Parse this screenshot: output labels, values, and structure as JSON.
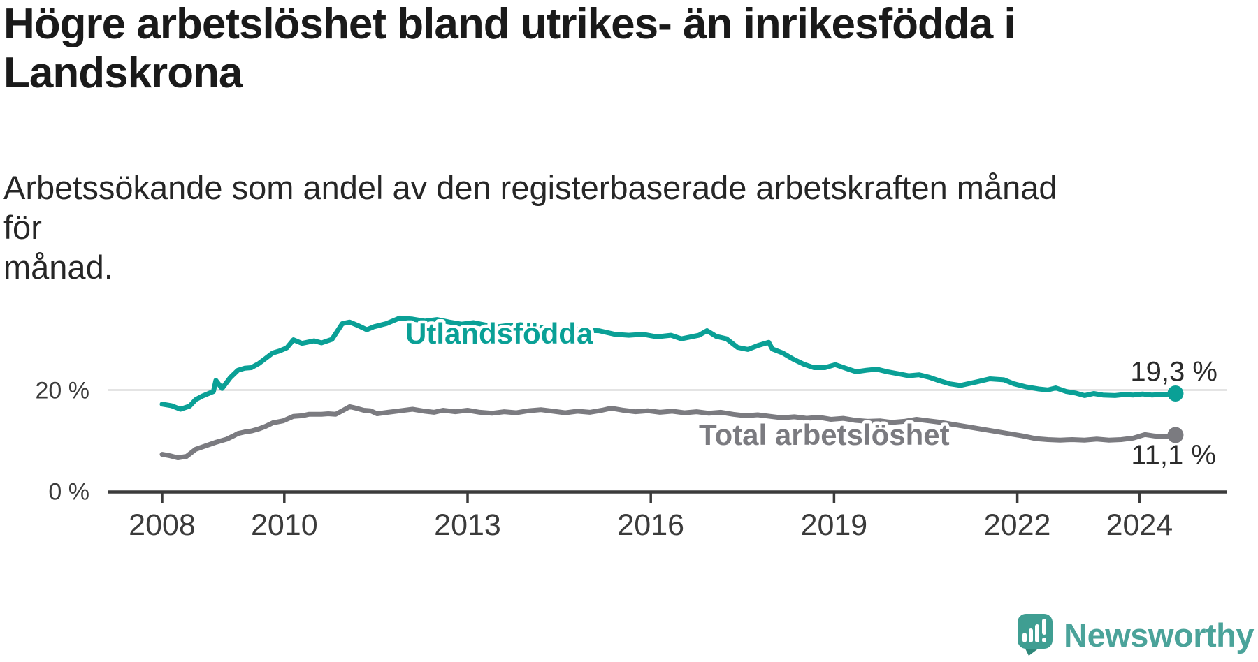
{
  "title": {
    "line1": "Högre arbetslöshet bland utrikes- än inrikesfödda i",
    "line2": "Landskrona",
    "full": "Högre arbetslöshet bland utrikes- än inrikesfödda i Landskrona"
  },
  "subtitle": {
    "line1": "Arbetssökande som andel av den registerbaserade arbetskraften månad för",
    "line2": "månad.",
    "full": "Arbetssökande som andel av den registerbaserade arbetskraften månad för månad."
  },
  "branding": {
    "logo_text": "Newsworthy",
    "logo_icon": "speech-bubble-bar-chart-exclamation",
    "brand_color": "#3f9e92",
    "text_color": "#4ba39a"
  },
  "chart_data": {
    "type": "line",
    "title": "Högre arbetslöshet bland utrikes- än inrikesfödda i Landskrona",
    "xlabel": "",
    "ylabel": "Arbetssökande som andel av den registerbaserade arbetskraften",
    "x_range": [
      2008.0,
      2024.59
    ],
    "ylim": [
      0,
      40
    ],
    "grid": "single horizontal gridline at 20 %",
    "x_ticks": [
      {
        "value": 2008,
        "label": "2008"
      },
      {
        "value": 2010,
        "label": "2010"
      },
      {
        "value": 2013,
        "label": "2013"
      },
      {
        "value": 2016,
        "label": "2016"
      },
      {
        "value": 2019,
        "label": "2019"
      },
      {
        "value": 2022,
        "label": "2022"
      },
      {
        "value": 2024,
        "label": "2024"
      }
    ],
    "y_ticks": [
      {
        "value": 0,
        "label": "0 %"
      },
      {
        "value": 20,
        "label": "20 %"
      }
    ],
    "axis_color": "#3b3b3b",
    "grid_color": "#dcdcdc",
    "value_label_color": "#2b2b2b",
    "series": [
      {
        "name": "Utlandsfödda",
        "color": "#0aa096",
        "end_label": "19,3 %",
        "end_value": 19.3,
        "points": [
          [
            2008.0,
            17.2
          ],
          [
            2008.15,
            16.9
          ],
          [
            2008.3,
            16.2
          ],
          [
            2008.45,
            16.8
          ],
          [
            2008.55,
            18.1
          ],
          [
            2008.66,
            18.8
          ],
          [
            2008.78,
            19.4
          ],
          [
            2008.84,
            19.7
          ],
          [
            2008.88,
            21.9
          ],
          [
            2008.98,
            20.3
          ],
          [
            2009.12,
            22.5
          ],
          [
            2009.24,
            23.9
          ],
          [
            2009.35,
            24.3
          ],
          [
            2009.46,
            24.4
          ],
          [
            2009.58,
            25.2
          ],
          [
            2009.69,
            26.2
          ],
          [
            2009.81,
            27.3
          ],
          [
            2009.92,
            27.7
          ],
          [
            2010.04,
            28.3
          ],
          [
            2010.15,
            29.9
          ],
          [
            2010.29,
            29.2
          ],
          [
            2010.49,
            29.7
          ],
          [
            2010.61,
            29.3
          ],
          [
            2010.78,
            30.0
          ],
          [
            2010.95,
            33.1
          ],
          [
            2011.07,
            33.4
          ],
          [
            2011.21,
            32.7
          ],
          [
            2011.35,
            31.9
          ],
          [
            2011.47,
            32.5
          ],
          [
            2011.67,
            33.1
          ],
          [
            2011.81,
            33.8
          ],
          [
            2011.89,
            34.2
          ],
          [
            2012.1,
            34.0
          ],
          [
            2012.3,
            33.6
          ],
          [
            2012.5,
            33.9
          ],
          [
            2012.7,
            33.4
          ],
          [
            2012.9,
            33.0
          ],
          [
            2013.1,
            33.3
          ],
          [
            2013.3,
            32.8
          ],
          [
            2013.5,
            32.5
          ],
          [
            2013.7,
            32.8
          ],
          [
            2013.9,
            32.3
          ],
          [
            2014.1,
            32.6
          ],
          [
            2014.3,
            32.1
          ],
          [
            2014.5,
            31.9
          ],
          [
            2014.7,
            32.2
          ],
          [
            2014.9,
            31.8
          ],
          [
            2015.15,
            31.7
          ],
          [
            2015.41,
            31.0
          ],
          [
            2015.64,
            30.8
          ],
          [
            2015.87,
            31.0
          ],
          [
            2016.1,
            30.5
          ],
          [
            2016.33,
            30.8
          ],
          [
            2016.5,
            30.1
          ],
          [
            2016.79,
            30.8
          ],
          [
            2016.92,
            31.7
          ],
          [
            2017.07,
            30.6
          ],
          [
            2017.24,
            30.1
          ],
          [
            2017.42,
            28.4
          ],
          [
            2017.59,
            28.0
          ],
          [
            2017.76,
            28.8
          ],
          [
            2017.93,
            29.4
          ],
          [
            2017.99,
            28.1
          ],
          [
            2018.16,
            27.3
          ],
          [
            2018.33,
            26.1
          ],
          [
            2018.5,
            25.1
          ],
          [
            2018.67,
            24.4
          ],
          [
            2018.85,
            24.4
          ],
          [
            2019.02,
            25.0
          ],
          [
            2019.19,
            24.3
          ],
          [
            2019.36,
            23.6
          ],
          [
            2019.53,
            23.9
          ],
          [
            2019.7,
            24.1
          ],
          [
            2019.87,
            23.6
          ],
          [
            2020.05,
            23.2
          ],
          [
            2020.22,
            22.8
          ],
          [
            2020.39,
            23.0
          ],
          [
            2020.56,
            22.5
          ],
          [
            2020.73,
            21.8
          ],
          [
            2020.9,
            21.2
          ],
          [
            2021.07,
            20.9
          ],
          [
            2021.3,
            21.5
          ],
          [
            2021.55,
            22.2
          ],
          [
            2021.78,
            22.0
          ],
          [
            2021.95,
            21.2
          ],
          [
            2022.15,
            20.6
          ],
          [
            2022.35,
            20.2
          ],
          [
            2022.5,
            20.0
          ],
          [
            2022.63,
            20.4
          ],
          [
            2022.8,
            19.7
          ],
          [
            2022.95,
            19.4
          ],
          [
            2023.1,
            18.9
          ],
          [
            2023.25,
            19.3
          ],
          [
            2023.4,
            19.0
          ],
          [
            2023.6,
            18.9
          ],
          [
            2023.75,
            19.1
          ],
          [
            2023.9,
            19.0
          ],
          [
            2024.05,
            19.2
          ],
          [
            2024.2,
            19.0
          ],
          [
            2024.35,
            19.1
          ],
          [
            2024.5,
            19.2
          ],
          [
            2024.59,
            19.3
          ]
        ]
      },
      {
        "name": "Total arbetslöshet",
        "color": "#7b7b80",
        "end_label": "11,1 %",
        "end_value": 11.1,
        "points": [
          [
            2008.0,
            7.3
          ],
          [
            2008.13,
            7.0
          ],
          [
            2008.26,
            6.6
          ],
          [
            2008.4,
            6.9
          ],
          [
            2008.55,
            8.3
          ],
          [
            2008.72,
            9.0
          ],
          [
            2008.89,
            9.7
          ],
          [
            2009.06,
            10.3
          ],
          [
            2009.18,
            11.0
          ],
          [
            2009.24,
            11.4
          ],
          [
            2009.35,
            11.7
          ],
          [
            2009.46,
            11.9
          ],
          [
            2009.58,
            12.3
          ],
          [
            2009.69,
            12.8
          ],
          [
            2009.81,
            13.5
          ],
          [
            2009.98,
            13.9
          ],
          [
            2010.15,
            14.8
          ],
          [
            2010.29,
            14.9
          ],
          [
            2010.4,
            15.2
          ],
          [
            2010.61,
            15.2
          ],
          [
            2010.72,
            15.3
          ],
          [
            2010.84,
            15.2
          ],
          [
            2010.95,
            15.9
          ],
          [
            2011.07,
            16.7
          ],
          [
            2011.18,
            16.4
          ],
          [
            2011.3,
            16.0
          ],
          [
            2011.41,
            15.9
          ],
          [
            2011.52,
            15.3
          ],
          [
            2011.7,
            15.6
          ],
          [
            2011.9,
            15.9
          ],
          [
            2012.1,
            16.2
          ],
          [
            2012.3,
            15.8
          ],
          [
            2012.45,
            15.6
          ],
          [
            2012.6,
            16.0
          ],
          [
            2012.8,
            15.7
          ],
          [
            2013.0,
            16.0
          ],
          [
            2013.2,
            15.6
          ],
          [
            2013.4,
            15.4
          ],
          [
            2013.6,
            15.7
          ],
          [
            2013.8,
            15.5
          ],
          [
            2014.0,
            15.9
          ],
          [
            2014.2,
            16.1
          ],
          [
            2014.4,
            15.8
          ],
          [
            2014.6,
            15.5
          ],
          [
            2014.8,
            15.8
          ],
          [
            2015.0,
            15.6
          ],
          [
            2015.2,
            16.0
          ],
          [
            2015.35,
            16.4
          ],
          [
            2015.55,
            16.0
          ],
          [
            2015.75,
            15.7
          ],
          [
            2015.95,
            15.9
          ],
          [
            2016.15,
            15.6
          ],
          [
            2016.35,
            15.8
          ],
          [
            2016.55,
            15.5
          ],
          [
            2016.75,
            15.7
          ],
          [
            2016.95,
            15.4
          ],
          [
            2017.15,
            15.6
          ],
          [
            2017.35,
            15.2
          ],
          [
            2017.55,
            14.9
          ],
          [
            2017.75,
            15.1
          ],
          [
            2017.95,
            14.8
          ],
          [
            2018.15,
            14.5
          ],
          [
            2018.35,
            14.7
          ],
          [
            2018.55,
            14.4
          ],
          [
            2018.75,
            14.6
          ],
          [
            2018.95,
            14.2
          ],
          [
            2019.15,
            14.4
          ],
          [
            2019.35,
            14.0
          ],
          [
            2019.55,
            13.8
          ],
          [
            2019.75,
            13.9
          ],
          [
            2019.95,
            13.6
          ],
          [
            2020.15,
            13.8
          ],
          [
            2020.35,
            14.2
          ],
          [
            2020.55,
            13.9
          ],
          [
            2020.75,
            13.6
          ],
          [
            2020.95,
            13.2
          ],
          [
            2021.15,
            12.8
          ],
          [
            2021.35,
            12.4
          ],
          [
            2021.6,
            11.9
          ],
          [
            2021.85,
            11.4
          ],
          [
            2022.1,
            10.9
          ],
          [
            2022.3,
            10.4
          ],
          [
            2022.5,
            10.2
          ],
          [
            2022.7,
            10.1
          ],
          [
            2022.9,
            10.2
          ],
          [
            2023.1,
            10.1
          ],
          [
            2023.3,
            10.3
          ],
          [
            2023.5,
            10.1
          ],
          [
            2023.7,
            10.2
          ],
          [
            2023.9,
            10.5
          ],
          [
            2024.09,
            11.2
          ],
          [
            2024.25,
            10.9
          ],
          [
            2024.4,
            10.8
          ],
          [
            2024.59,
            11.1
          ]
        ]
      }
    ]
  }
}
